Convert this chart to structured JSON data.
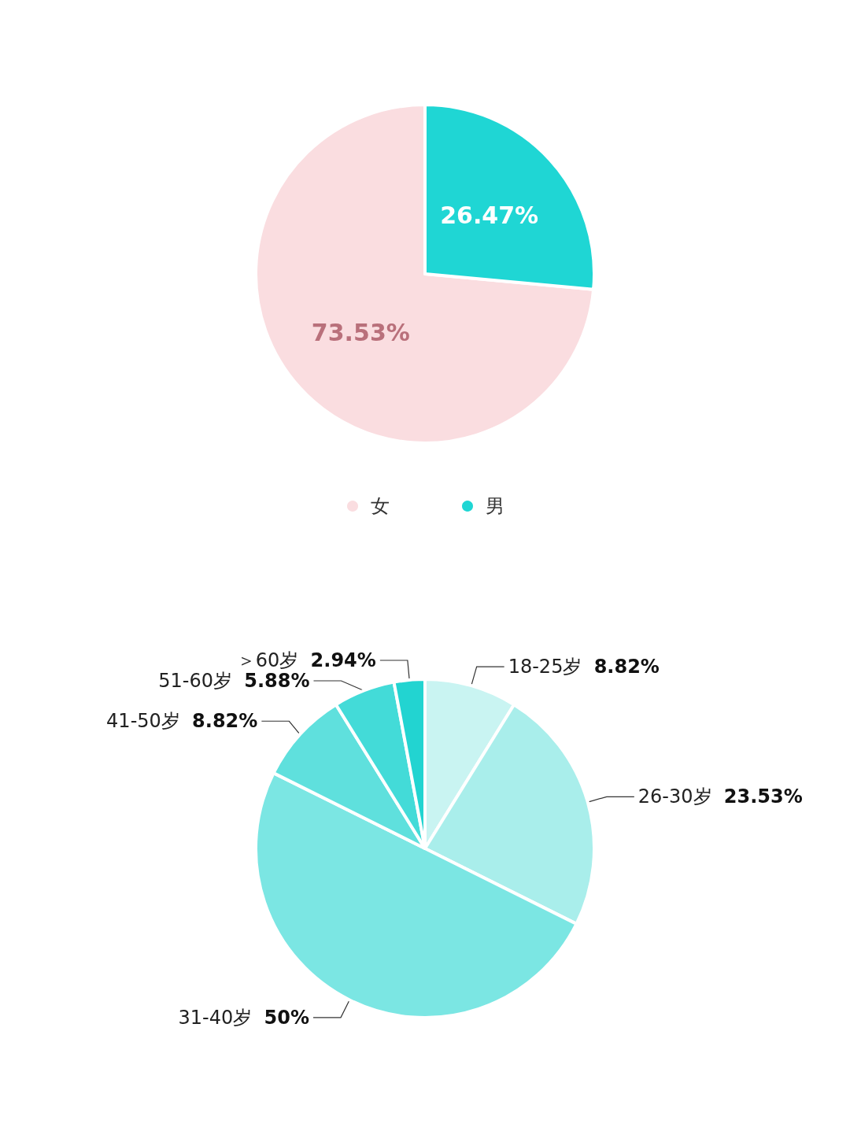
{
  "chart_data": [
    {
      "type": "pie",
      "categories": [
        "女",
        "男"
      ],
      "values": [
        73.53,
        26.47
      ],
      "colors": [
        "#fadde0",
        "#1fd6d4"
      ],
      "value_labels": [
        "73.53%",
        "26.47%"
      ],
      "legend": "bottom"
    },
    {
      "type": "pie",
      "categories": [
        "18-25岁",
        "26-30岁",
        "31-40岁",
        "41-50岁",
        "51-60岁",
        "＞60岁"
      ],
      "values": [
        8.82,
        23.53,
        50,
        8.82,
        5.88,
        2.94
      ],
      "colors": [
        "#c9f4f2",
        "#a9eeeb",
        "#7be6e3",
        "#5fe0dd",
        "#43dbd8",
        "#22d4d1"
      ],
      "value_labels": [
        "8.82%",
        "23.53%",
        "50%",
        "8.82%",
        "5.88%",
        "2.94%"
      ]
    }
  ]
}
